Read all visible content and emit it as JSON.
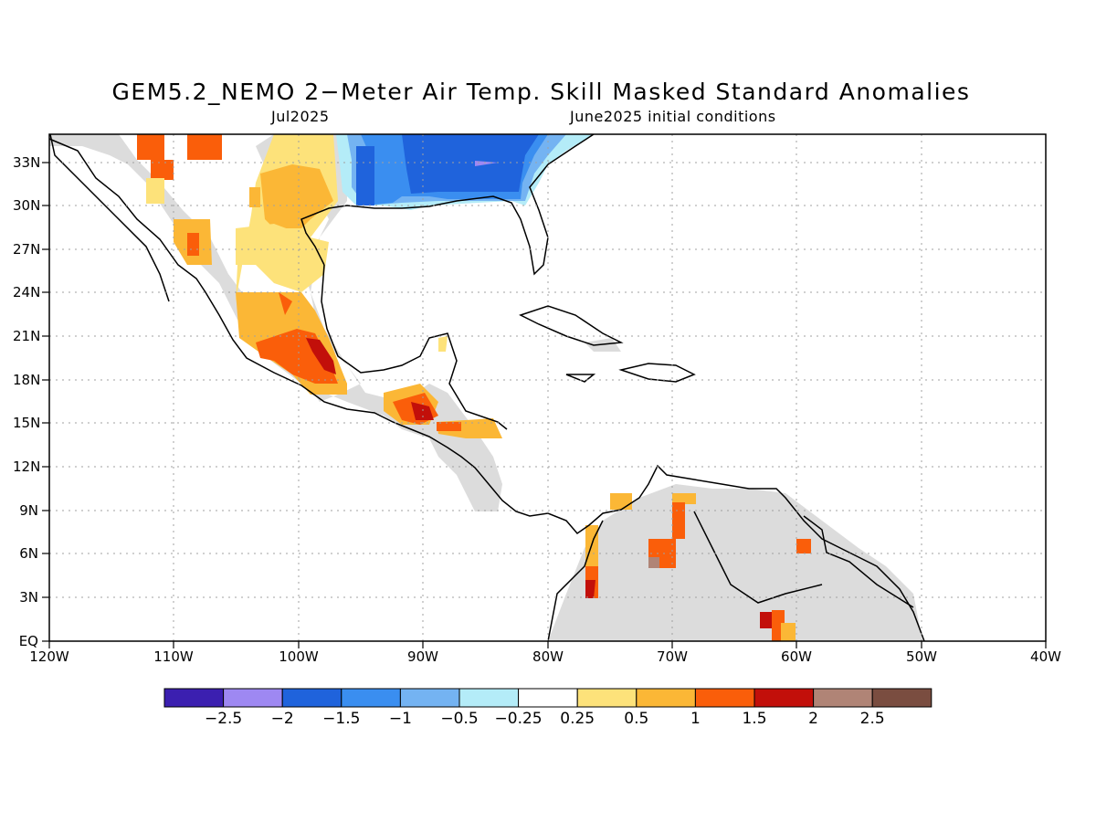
{
  "title": "GEM5.2_NEMO 2−Meter Air Temp. Skill Masked Standard Anomalies",
  "subtitle_left": "Jul2025",
  "subtitle_right": "June2025 initial conditions",
  "map": {
    "region": "Gulf of Mexico, Caribbean, Central America and northern South America",
    "lon_range": [
      -120,
      -40
    ],
    "lat_range": [
      0,
      35
    ],
    "y_ticks": [
      "33N",
      "30N",
      "27N",
      "24N",
      "21N",
      "18N",
      "15N",
      "12N",
      "9N",
      "6N",
      "3N",
      "EQ"
    ],
    "x_ticks": [
      "120W",
      "110W",
      "100W",
      "90W",
      "80W",
      "70W",
      "60W",
      "50W",
      "40W"
    ],
    "grid": "dotted",
    "masked_color": "#dcdcdc",
    "features": {
      "cold_anomaly_region": "southeastern United States (negative anomalies to about −2)",
      "warm_anomaly_regions": "northern and central Mexico, Guatemala/Honduras, patches in Colombia, Venezuela and Guyana"
    }
  },
  "colorbar": {
    "colors": [
      "#3b1fb0",
      "#9e88f2",
      "#1f63dc",
      "#3a8ef0",
      "#74b3f2",
      "#b4ecf8",
      "#ffffff",
      "#fde27a",
      "#fbb736",
      "#fa5e0a",
      "#c20f0a",
      "#b08476",
      "#7a4d40"
    ],
    "labels": [
      "−2.5",
      "−2",
      "−1.5",
      "−1",
      "−0.5",
      "−0.25",
      "0.25",
      "0.5",
      "1",
      "1.5",
      "2",
      "2.5"
    ]
  }
}
